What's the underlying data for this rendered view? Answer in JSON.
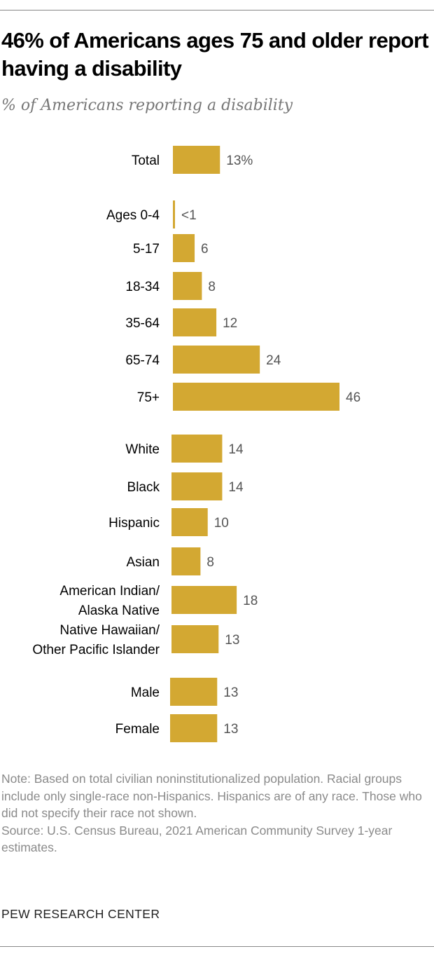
{
  "title": "46% of Americans ages 75 and older report having a disability",
  "subtitle": "% of Americans reporting a disability",
  "chart_data": {
    "type": "bar",
    "orientation": "horizontal",
    "bar_color": "#D3A832",
    "xlim": [
      0,
      46
    ],
    "grid": false,
    "categories": [
      "Total",
      "Ages 0-4",
      "5-17",
      "18-34",
      "35-64",
      "65-74",
      "75+",
      "White",
      "Black",
      "Hispanic",
      "Asian",
      "American Indian/\nAlaska Native",
      "Native Hawaiian/\nOther Pacific Islander",
      "Male",
      "Female"
    ],
    "values": [
      13,
      0.5,
      6,
      8,
      12,
      24,
      46,
      14,
      14,
      10,
      8,
      18,
      13,
      13,
      13
    ],
    "value_labels": [
      "13%",
      "<1",
      "6",
      "8",
      "12",
      "24",
      "46",
      "14",
      "14",
      "10",
      "8",
      "18",
      "13",
      "13",
      "13"
    ]
  },
  "notes": [
    "Note: Based on total civilian noninstitutionalized population. Racial groups include only single-race non-Hispanics. Hispanics are of any race. Those who did not specify their race not shown.",
    "Source: U.S. Census Bureau, 2021 American Community Survey 1-year estimates."
  ],
  "brand": "PEW RESEARCH CENTER"
}
